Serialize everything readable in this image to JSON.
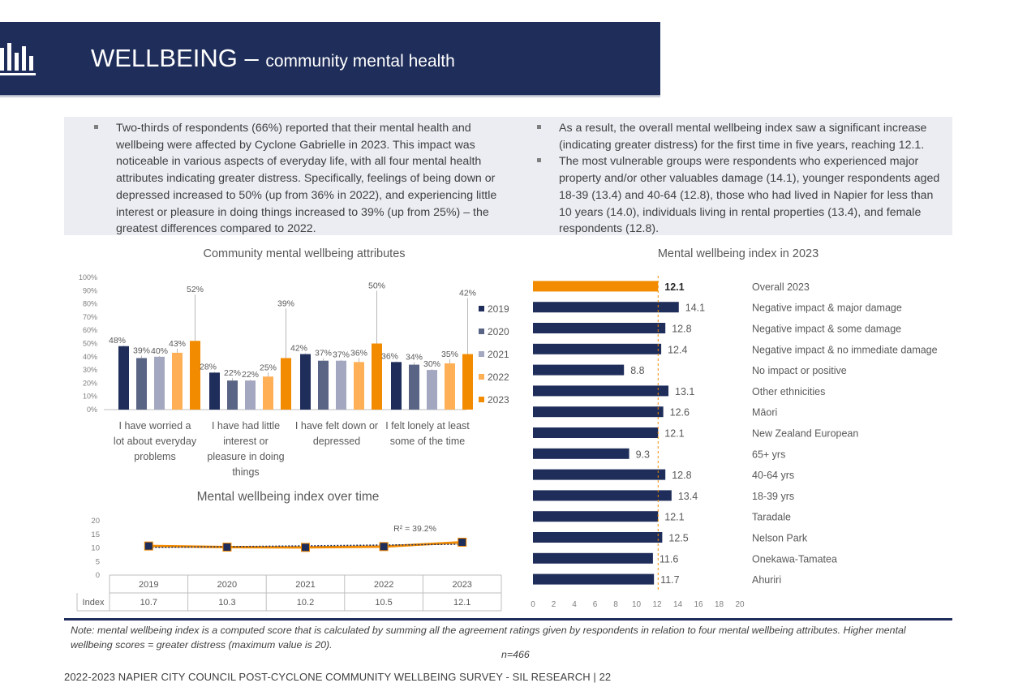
{
  "header": {
    "title_main": "WELLBEING – ",
    "title_sub": "community mental health"
  },
  "summary": {
    "left_bullets": [
      "Two-thirds of respondents (66%) reported that their mental health and wellbeing were affected by Cyclone Gabrielle in 2023. This impact was noticeable in various aspects of everyday life, with all four mental health attributes indicating greater distress. Specifically, feelings of being down or depressed increased to 50% (up from 36% in 2022), and experiencing little interest or pleasure in doing things increased to 39% (up from 25%) – the greatest differences compared to 2022."
    ],
    "right_bullets": [
      "As a result, the overall mental wellbeing index saw a significant increase (indicating greater distress) for the first time in five years, reaching 12.1.",
      "The most vulnerable groups were respondents who experienced major property and/or other valuables damage (14.1), younger respondents aged 18-39 (13.4) and 40-64 (12.8), those who had lived in Napier for less than 10 years (14.0), individuals living in rental properties (13.4), and female respondents (12.8)."
    ]
  },
  "colors": {
    "navy": "#1f2d5a",
    "series": [
      "#1f2d5a",
      "#5a6484",
      "#a3a8c0",
      "#ffb057",
      "#f28b00"
    ],
    "highlight_bar": "#f28b00",
    "index_bar": "#1f2d5a"
  },
  "chart_data": [
    {
      "id": "attributes",
      "type": "bar",
      "title": "Community mental wellbeing attributes",
      "categories": [
        [
          "I have worried a",
          "lot about everyday",
          "problems"
        ],
        [
          "I have had little",
          "interest or",
          "pleasure in doing",
          "things"
        ],
        [
          "I have felt down or",
          "depressed"
        ],
        [
          "I felt lonely at least",
          "some of the time"
        ]
      ],
      "series": [
        {
          "name": "2019",
          "values": [
            48,
            28,
            42,
            36
          ]
        },
        {
          "name": "2020",
          "values": [
            39,
            22,
            37,
            34
          ]
        },
        {
          "name": "2021",
          "values": [
            40,
            22,
            37,
            30
          ]
        },
        {
          "name": "2022",
          "values": [
            43,
            25,
            36,
            35
          ]
        },
        {
          "name": "2023",
          "values": [
            52,
            39,
            50,
            42
          ]
        }
      ],
      "yticks": [
        "0%",
        "10%",
        "20%",
        "30%",
        "40%",
        "50%",
        "60%",
        "70%",
        "80%",
        "90%",
        "100%"
      ],
      "ylim": [
        0,
        100
      ],
      "legend": "right"
    },
    {
      "id": "index_over_time",
      "type": "line",
      "title": "Mental wellbeing index over time",
      "x": [
        "2019",
        "2020",
        "2021",
        "2022",
        "2023"
      ],
      "series": [
        {
          "name": "Index",
          "values": [
            10.7,
            10.3,
            10.2,
            10.5,
            12.1
          ]
        }
      ],
      "value_labels": [
        "10.7",
        "10.3",
        "10.2",
        "10.5",
        "12.1"
      ],
      "yticks": [
        "0",
        "5",
        "10",
        "15",
        "20"
      ],
      "ylim": [
        0,
        20
      ],
      "trendline": true,
      "trend_label": "R² = 39.2%"
    },
    {
      "id": "index_2023",
      "type": "bar",
      "orientation": "horizontal",
      "title": "Mental wellbeing index in 2023",
      "categories": [
        "Overall 2023",
        "Negative impact & major damage",
        "Negative impact & some damage",
        "Negative impact & no immediate damage",
        "No impact or positive",
        "Other ethnicities",
        "Māori",
        "New Zealand European",
        "65+ yrs",
        "40-64 yrs",
        "18-39 yrs",
        "Taradale",
        "Nelson Park",
        "Onekawa-Tamatea",
        "Ahuriri"
      ],
      "values": [
        12.1,
        14.1,
        12.8,
        12.4,
        8.8,
        13.1,
        12.6,
        12.1,
        9.3,
        12.8,
        13.4,
        12.1,
        12.5,
        11.6,
        11.7
      ],
      "value_labels": [
        "12.1",
        "14.1",
        "12.8",
        "12.4",
        "8.8",
        "13.1",
        "12.6",
        "12.1",
        "9.3",
        "12.8",
        "13.4",
        "12.1",
        "12.5",
        "11.6",
        "11.7"
      ],
      "xticks": [
        "0",
        "2",
        "4",
        "6",
        "8",
        "10",
        "12",
        "14",
        "16",
        "18",
        "20"
      ],
      "xlim": [
        0,
        20
      ],
      "reference_line": 12.1
    }
  ],
  "note": "Note: mental wellbeing index is a computed score that is calculated by summing all the agreement ratings given by respondents in relation to four mental wellbeing attributes. Higher mental wellbeing scores = greater distress (maximum value is 20).",
  "sample": "n=466",
  "footer": "2022-2023 NAPIER CITY COUNCIL POST-CYCLONE COMMUNITY WELLBEING SURVEY - SIL RESEARCH | 22"
}
